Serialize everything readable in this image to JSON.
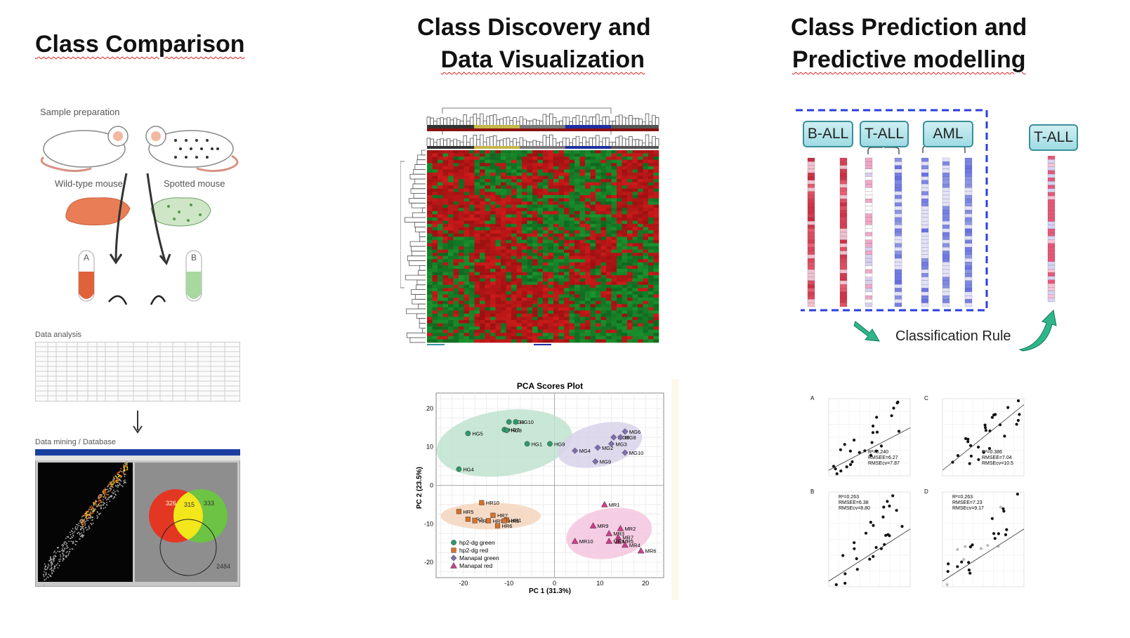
{
  "headings": {
    "class_comparison": "Class Comparison",
    "class_discovery_line1": "Class Discovery and",
    "class_discovery_line2": "Data Visualization",
    "class_prediction_line1": "Class Prediction and",
    "class_prediction_line2": "Predictive modelling"
  },
  "comparison": {
    "sample_preparation": "Sample preparation",
    "wild_type_mouse": "Wild-type mouse",
    "spotted_mouse": "Spotted mouse",
    "tube_a": "A",
    "tube_b": "B",
    "data_analysis": "Data analysis",
    "data_mining": "Data mining / Database",
    "venn_left": "326",
    "venn_mid": "315",
    "venn_right": "333",
    "venn_bottom": "2484"
  },
  "pca": {
    "title": "PCA Scores Plot",
    "xlabel": "PC 1 (31.3%)",
    "ylabel": "PC 2 (23.5%)",
    "legend": [
      "hp2-dg green",
      "hp2-dg red",
      "Manapal green",
      "Manapal red"
    ]
  },
  "prediction": {
    "labels": [
      "B-ALL",
      "T-ALL",
      "AML"
    ],
    "test_label": "T-ALL",
    "rule": "Classification Rule",
    "scatter_panels": [
      {
        "letter": "A",
        "r2": "R²=0.240",
        "rmsee": "RMSEE=6.27",
        "rmsecv": "RMSEcv=7.87"
      },
      {
        "letter": "C",
        "r2": "R²=0.386",
        "rmsee": "RMSEE=7.04",
        "rmsecv": "RMSEcv=10.5"
      },
      {
        "letter": "B",
        "r2": "R²=0.263",
        "rmsee": "RMSEE=6.38",
        "rmsecv": "RMSEcv=8.80"
      },
      {
        "letter": "D",
        "r2": "R²=0.263",
        "rmsee": "RMSEE=7.23",
        "rmsecv": "RMSEcv=9.17"
      }
    ]
  },
  "chart_data": {
    "type": "scatter",
    "title": "PCA Scores Plot",
    "xlabel": "PC 1 (31.3%)",
    "ylabel": "PC 2 (23.5%)",
    "xlim": [
      -26,
      24
    ],
    "ylim": [
      -24,
      24
    ],
    "xticks": [
      -20,
      -10,
      0,
      10,
      20
    ],
    "yticks": [
      -20,
      -10,
      0,
      10,
      20
    ],
    "legend_position": "bottom-left",
    "series": [
      {
        "name": "hp2-dg green",
        "marker": "circle",
        "color": "#2e9a6a",
        "points": [
          {
            "label": "HG5",
            "x": -19,
            "y": 13.5
          },
          {
            "label": "HG3",
            "x": -10,
            "y": 16.5
          },
          {
            "label": "HG10",
            "x": -8.5,
            "y": 16.5
          },
          {
            "label": "HG7",
            "x": -11,
            "y": 14.5
          },
          {
            "label": "HG8",
            "x": -10.5,
            "y": 14.3
          },
          {
            "label": "HG1",
            "x": -6,
            "y": 10.8
          },
          {
            "label": "HG9",
            "x": -1,
            "y": 10.8
          },
          {
            "label": "HG4",
            "x": -21,
            "y": 4.2
          }
        ]
      },
      {
        "name": "hp2-dg red",
        "marker": "square",
        "color": "#d9702a",
        "points": [
          {
            "label": "HR10",
            "x": -16,
            "y": -4.5
          },
          {
            "label": "HR5",
            "x": -21,
            "y": -6.8
          },
          {
            "label": "HR3",
            "x": -19,
            "y": -8.8
          },
          {
            "label": "HR4",
            "x": -17.5,
            "y": -9.2
          },
          {
            "label": "HR7",
            "x": -13.5,
            "y": -7.8
          },
          {
            "label": "HR9",
            "x": -14.5,
            "y": -9.2
          },
          {
            "label": "HR1",
            "x": -10.5,
            "y": -9
          },
          {
            "label": "HR6",
            "x": -12.5,
            "y": -10.5
          },
          {
            "label": "HR8",
            "x": -11,
            "y": -9.2
          }
        ]
      },
      {
        "name": "Manapal green",
        "marker": "diamond",
        "color": "#7e6fb0",
        "points": [
          {
            "label": "MG6",
            "x": 15.5,
            "y": 14
          },
          {
            "label": "MG5",
            "x": 13,
            "y": 12.5
          },
          {
            "label": "MG8",
            "x": 14.5,
            "y": 12.5
          },
          {
            "label": "MG3",
            "x": 12.5,
            "y": 10.8
          },
          {
            "label": "MG2",
            "x": 9.5,
            "y": 9.8
          },
          {
            "label": "MG4",
            "x": 4.5,
            "y": 9
          },
          {
            "label": "MG10",
            "x": 15.5,
            "y": 8.5
          },
          {
            "label": "MG9",
            "x": 9,
            "y": 6.2
          }
        ]
      },
      {
        "name": "Manapal red",
        "marker": "triangle",
        "color": "#d03c8c",
        "points": [
          {
            "label": "MR1",
            "x": 11,
            "y": -5
          },
          {
            "label": "MR9",
            "x": 8.5,
            "y": -10.5
          },
          {
            "label": "MR2",
            "x": 14.5,
            "y": -11.2
          },
          {
            "label": "MR3",
            "x": 12,
            "y": -12.5
          },
          {
            "label": "MR7",
            "x": 14,
            "y": -13.5
          },
          {
            "label": "MR5",
            "x": 14,
            "y": -14.5
          },
          {
            "label": "MR10",
            "x": 4.5,
            "y": -14.5
          },
          {
            "label": "MR8",
            "x": 12,
            "y": -14.5
          },
          {
            "label": "MR4",
            "x": 15.5,
            "y": -15.5
          },
          {
            "label": "MR6",
            "x": 19,
            "y": -17
          }
        ]
      }
    ]
  }
}
